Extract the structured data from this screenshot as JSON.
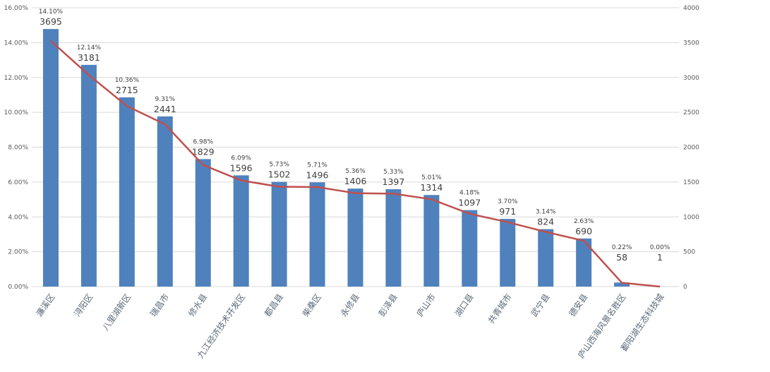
{
  "chart_data": {
    "type": "bar",
    "title": "",
    "categories": [
      "濂溪区",
      "浔阳区",
      "八里湖新区",
      "瑞昌市",
      "修水县",
      "九江经济技术开发区",
      "都昌县",
      "柴桑区",
      "永修县",
      "彭泽县",
      "庐山市",
      "湖口县",
      "共青城市",
      "武宁县",
      "德安县",
      "庐山西海风景名胜区",
      "鄱阳湖生态科技城"
    ],
    "series": [
      {
        "name": "count",
        "type": "bar",
        "axis": "right",
        "color": "#4f81bd",
        "values": [
          3695,
          3181,
          2715,
          2441,
          1829,
          1596,
          1502,
          1496,
          1406,
          1397,
          1314,
          1097,
          971,
          824,
          690,
          58,
          1
        ]
      },
      {
        "name": "percent",
        "type": "line",
        "axis": "left",
        "color": "#c0504d",
        "values": [
          14.1,
          12.14,
          10.36,
          9.31,
          6.98,
          6.09,
          5.73,
          5.71,
          5.36,
          5.33,
          5.01,
          4.18,
          3.7,
          3.14,
          2.63,
          0.22,
          0.0
        ]
      }
    ],
    "left_axis": {
      "ylim": [
        0,
        16
      ],
      "ticks": [
        "0.00%",
        "2.00%",
        "4.00%",
        "6.00%",
        "8.00%",
        "10.00%",
        "12.00%",
        "14.00%",
        "16.00%"
      ]
    },
    "right_axis": {
      "ylim": [
        0,
        4000
      ],
      "ticks": [
        "0",
        "500",
        "1000",
        "1500",
        "2000",
        "2500",
        "3000",
        "3500",
        "4000"
      ]
    },
    "grid": true
  }
}
